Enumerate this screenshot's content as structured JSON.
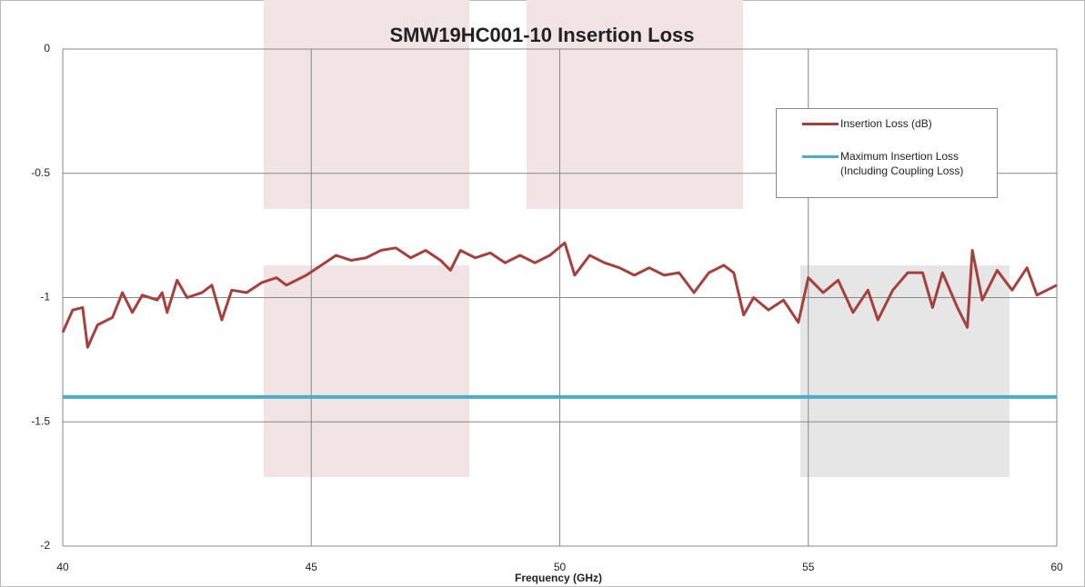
{
  "chart_data": {
    "type": "line",
    "title": "SMW19HC001-10 Insertion Loss",
    "x_label": "Frequency (GHz)",
    "xlim": [
      40,
      60
    ],
    "xticks": [
      40,
      45,
      50,
      55,
      60
    ],
    "ylim": [
      -2,
      0
    ],
    "yticks": [
      0,
      -0.5,
      -1,
      -1.5,
      -2
    ],
    "grid": true,
    "legend": "upper right",
    "series": [
      {
        "name": "Insertion Loss (dB)",
        "color": "#a5403c",
        "x": [
          40.0,
          40.2,
          40.4,
          40.5,
          40.7,
          41.0,
          41.2,
          41.4,
          41.6,
          41.9,
          42.0,
          42.1,
          42.3,
          42.5,
          42.8,
          43.0,
          43.2,
          43.4,
          43.7,
          44.0,
          44.3,
          44.5,
          44.9,
          45.2,
          45.5,
          45.8,
          46.1,
          46.4,
          46.7,
          47.0,
          47.3,
          47.6,
          47.8,
          48.0,
          48.3,
          48.6,
          48.9,
          49.2,
          49.5,
          49.8,
          50.1,
          50.3,
          50.6,
          50.9,
          51.2,
          51.5,
          51.8,
          52.1,
          52.4,
          52.7,
          53.0,
          53.3,
          53.5,
          53.7,
          53.9,
          54.2,
          54.5,
          54.8,
          55.0,
          55.3,
          55.6,
          55.9,
          56.2,
          56.4,
          56.7,
          57.0,
          57.3,
          57.5,
          57.7,
          58.0,
          58.2,
          58.3,
          58.5,
          58.8,
          59.1,
          59.4,
          59.6,
          59.8,
          60.0
        ],
        "values": [
          -1.14,
          -1.05,
          -1.04,
          -1.2,
          -1.11,
          -1.08,
          -0.98,
          -1.06,
          -0.99,
          -1.01,
          -0.98,
          -1.06,
          -0.93,
          -1.0,
          -0.98,
          -0.95,
          -1.09,
          -0.97,
          -0.98,
          -0.94,
          -0.92,
          -0.95,
          -0.91,
          -0.87,
          -0.83,
          -0.85,
          -0.84,
          -0.81,
          -0.8,
          -0.84,
          -0.81,
          -0.85,
          -0.89,
          -0.81,
          -0.84,
          -0.82,
          -0.86,
          -0.83,
          -0.86,
          -0.83,
          -0.78,
          -0.91,
          -0.83,
          -0.86,
          -0.88,
          -0.91,
          -0.88,
          -0.91,
          -0.9,
          -0.98,
          -0.9,
          -0.87,
          -0.9,
          -1.07,
          -1.0,
          -1.05,
          -1.01,
          -1.1,
          -0.92,
          -0.98,
          -0.93,
          -1.06,
          -0.97,
          -1.09,
          -0.97,
          -0.9,
          -0.9,
          -1.04,
          -0.9,
          -1.04,
          -1.12,
          -0.81,
          -1.01,
          -0.89,
          -0.97,
          -0.88,
          -0.99,
          -0.97,
          -0.95
        ]
      },
      {
        "name": "Maximum Insertion Loss (Including Coupling Loss)",
        "color": "#4bacc6",
        "x": [
          40,
          60
        ],
        "values": [
          -1.4,
          -1.4
        ]
      }
    ]
  }
}
